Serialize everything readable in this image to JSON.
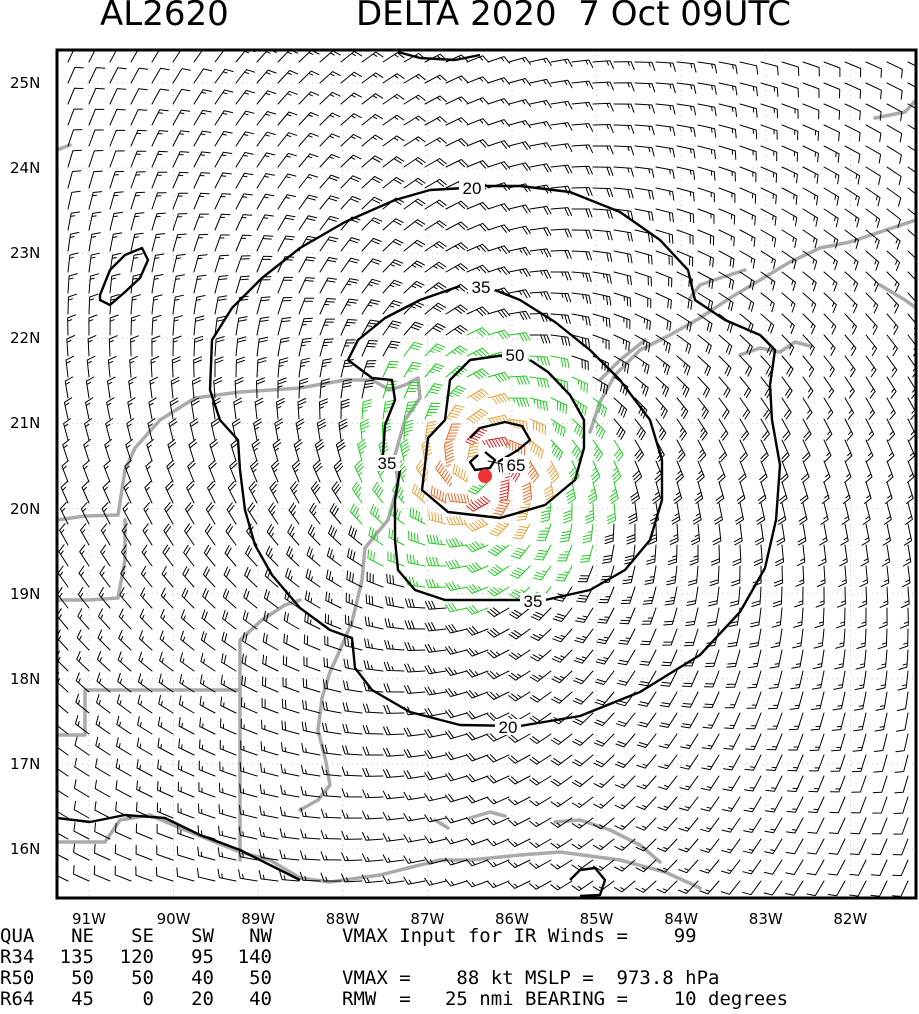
{
  "header": {
    "storm_id": "AL2620",
    "storm_name_time": "DELTA 2020  7 Oct 09UTC"
  },
  "chart_data": {
    "type": "wind barb contour map",
    "title": "AL2620    DELTA 2020  7 Oct 09UTC",
    "lat_ticks": [
      "25N",
      "24N",
      "23N",
      "22N",
      "21N",
      "20N",
      "19N",
      "18N",
      "17N",
      "16N"
    ],
    "lon_ticks": [
      "91W",
      "90W",
      "89W",
      "88W",
      "87W",
      "86W",
      "85W",
      "84W",
      "83W",
      "82W"
    ],
    "lat_range": [
      15.4,
      25.5
    ],
    "lon_range": [
      -91.4,
      -80.8
    ],
    "center": {
      "lat": 20.45,
      "lon": -86.35
    },
    "contours": [
      {
        "level": 20,
        "labels": [
          "20",
          "20"
        ]
      },
      {
        "level": 35,
        "labels": [
          "35",
          "35",
          "35"
        ]
      },
      {
        "level": 50,
        "labels": [
          "50"
        ]
      },
      {
        "level": 65,
        "labels": [
          "65"
        ]
      }
    ],
    "barb_colors": {
      "below34": "#000000",
      "34to49": "#22cc22",
      "50to63": "#e8a33a",
      "64plus": "#e86a2a",
      "max": "#dd2222"
    },
    "contour_color": "#000000",
    "coastline_color": "#aaaaaa",
    "grid": true
  },
  "info": {
    "header_row": [
      "QUA",
      "NE",
      "SE",
      "SW",
      "NW"
    ],
    "rows": [
      [
        "R34",
        "135",
        "120",
        "95",
        "140"
      ],
      [
        "R50",
        "50",
        "50",
        "40",
        "50"
      ],
      [
        "R64",
        "45",
        "0",
        "20",
        "40"
      ]
    ],
    "vmax_input": "VMAX Input for IR Winds =    99",
    "vmax_mslp": "VMAX =    88 kt MSLP =  973.8 hPa",
    "rmw": "RMW  =   25 nmi BEARING =    10 degrees"
  }
}
